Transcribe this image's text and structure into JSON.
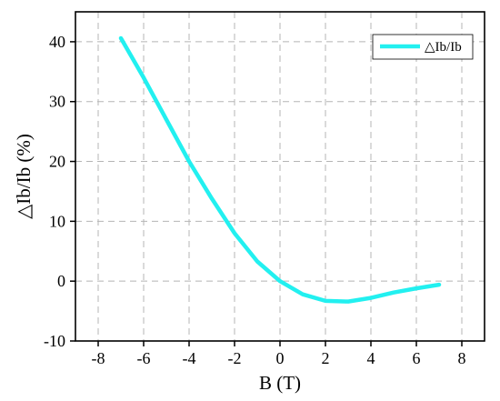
{
  "chart_data": {
    "type": "line",
    "xlabel": "B (T)",
    "ylabel": "△Ib/Ib (%)",
    "xlim": [
      -9,
      9
    ],
    "ylim": [
      -10,
      45
    ],
    "xticks": [
      -8,
      -6,
      -4,
      -2,
      0,
      2,
      4,
      6,
      8
    ],
    "yticks": [
      -10,
      0,
      10,
      20,
      30,
      40
    ],
    "xtick_labels": [
      "-8",
      "-6",
      "-4",
      "-2",
      "0",
      "2",
      "4",
      "6",
      "8"
    ],
    "ytick_labels": [
      "-10",
      "0",
      "10",
      "20",
      "30",
      "40"
    ],
    "grid": true,
    "legend_position": "top-right",
    "series": [
      {
        "name": "△Ib/Ib",
        "color": "#22f0f0",
        "x": [
          -7,
          -6,
          -5,
          -4,
          -3,
          -2,
          -1,
          0,
          1,
          2,
          3,
          4,
          5,
          6,
          7
        ],
        "y": [
          40.6,
          34.0,
          27.0,
          20.0,
          13.8,
          8.0,
          3.3,
          0.0,
          -2.2,
          -3.3,
          -3.4,
          -2.8,
          -1.9,
          -1.2,
          -0.6
        ]
      }
    ]
  }
}
